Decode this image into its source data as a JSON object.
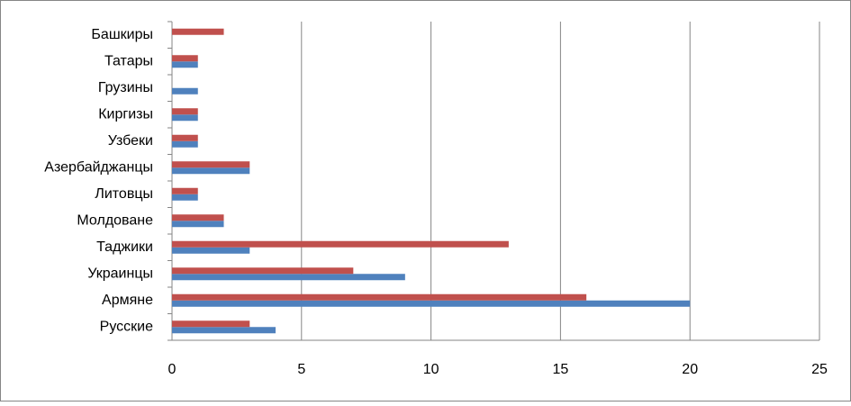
{
  "chart_data": {
    "type": "bar",
    "orientation": "horizontal",
    "categories": [
      "Русские",
      "Армяне",
      "Украинцы",
      "Таджики",
      "Молдоване",
      "Литовцы",
      "Азербайджанцы",
      "Узбеки",
      "Киргизы",
      "Грузины",
      "Татары",
      "Башкиры"
    ],
    "series": [
      {
        "color": "#4f81bd",
        "values": [
          4,
          20,
          9,
          3,
          2,
          1,
          3,
          1,
          1,
          1,
          1,
          0
        ]
      },
      {
        "color": "#c0504d",
        "values": [
          3,
          16,
          7,
          13,
          2,
          1,
          3,
          1,
          1,
          0,
          1,
          2
        ]
      }
    ],
    "xlim": [
      0,
      25
    ],
    "xticks": [
      0,
      5,
      10,
      15,
      20,
      25
    ],
    "grid": true
  }
}
